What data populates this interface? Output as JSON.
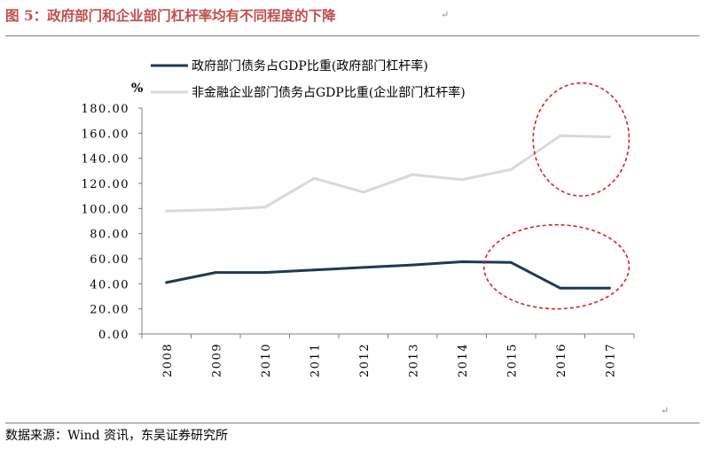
{
  "figure": {
    "title": "图 5：政府部门和企业部门杠杆率均有不同程度的下降",
    "source": "数据来源：Wind 资讯，东吴证券研究所"
  },
  "colors": {
    "government": "#1f3a4f",
    "corporate": "#d9d9d9",
    "highlight_circle": "#e02020",
    "title": "#c0504d"
  },
  "chart_data": {
    "type": "line",
    "title": "",
    "xlabel": "",
    "ylabel": "%",
    "x": [
      "2008",
      "2009",
      "2010",
      "2011",
      "2012",
      "2013",
      "2014",
      "2015",
      "2016",
      "2017"
    ],
    "ylim": [
      0,
      180
    ],
    "yticks": [
      0,
      20,
      40,
      60,
      80,
      100,
      120,
      140,
      160,
      180
    ],
    "ytick_labels": [
      "0.00",
      "20.00",
      "40.00",
      "60.00",
      "80.00",
      "100.00",
      "120.00",
      "140.00",
      "160.00",
      "180.00"
    ],
    "grid": false,
    "legend_position": "top",
    "series": [
      {
        "name": "政府部门债务占GDP比重(政府部门杠杆率)",
        "key": "government",
        "values": [
          41,
          49,
          49,
          51,
          53,
          55,
          57.5,
          57,
          36.5,
          36.5
        ]
      },
      {
        "name": "非金融企业部门债务占GDP比重(企业部门杠杆率)",
        "key": "corporate",
        "values": [
          98,
          99,
          101,
          124,
          113,
          127,
          123,
          131,
          158,
          157
        ]
      }
    ],
    "annotations": [
      {
        "type": "dashed-ellipse",
        "series": "corporate",
        "x_range": [
          "2016",
          "2017"
        ],
        "y_range": [
          110,
          200
        ]
      },
      {
        "type": "dashed-ellipse",
        "series": "government",
        "x_range": [
          "2015",
          "2017"
        ],
        "y_range": [
          20,
          87
        ]
      }
    ]
  }
}
